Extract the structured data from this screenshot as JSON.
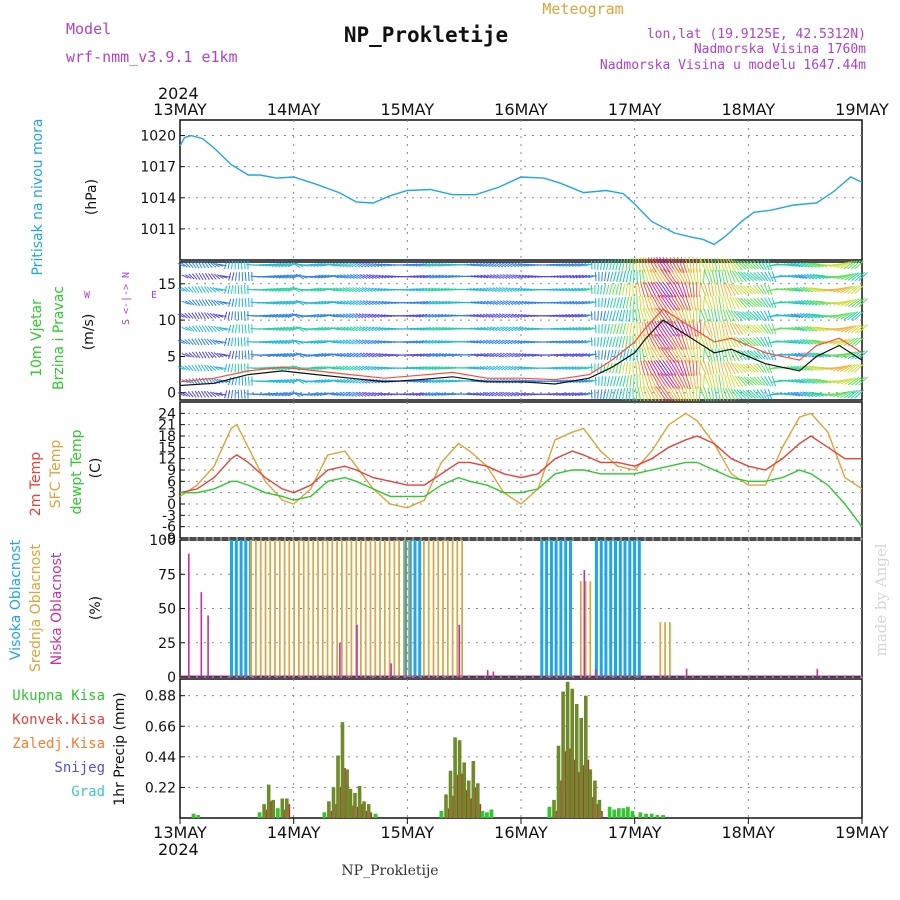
{
  "header": {
    "model_label": "Model",
    "model_name": "wrf-nmm_v3.9.1  e1km",
    "title": "NP_Prokletije",
    "subtitle": "Meteogram",
    "coords": "lon,lat (19.9125E, 42.5312N)",
    "elevation": "Nadmorska Visina 1760m",
    "model_elevation": "Nadmorska Visina u modelu 1647.44m"
  },
  "footer": {
    "station": "NP_Prokletije",
    "credit": "made by Angel"
  },
  "time_axis": {
    "year": "2024",
    "ticks": [
      "13MAY",
      "14MAY",
      "15MAY",
      "16MAY",
      "17MAY",
      "18MAY",
      "19MAY"
    ]
  },
  "wind_legend": {
    "n": "N",
    "s": "S",
    "e": "E",
    "w": "W",
    "arrows": "<-|->"
  },
  "colors": {
    "pressure": "#1fa6e6",
    "temp2m": "#e8413a",
    "sfc": "#e0a23a",
    "dewpt": "#2dc92d",
    "cloud_high": "#1fa6e6",
    "cloud_mid": "#d9a84a",
    "cloud_low": "#c42fa7",
    "precip_total": "#2dc92d",
    "precip_conv": "#e8413a",
    "precip_frz": "#ff7b2e",
    "snow": "#5050e0",
    "hail": "#3cc8c8",
    "model": "#b040d0"
  },
  "chart_data": [
    {
      "type": "line",
      "panel": "pressure",
      "ylabel": "(hPa)",
      "side_label": "Pritisak na nivou mora",
      "yticks": [
        1011,
        1014,
        1017,
        1020
      ],
      "ylim": [
        1008.0,
        1021.5
      ],
      "x_days": [
        0.0,
        0.04,
        0.1,
        0.2,
        0.3,
        0.45,
        0.6,
        0.7,
        0.85,
        1.0,
        1.2,
        1.4,
        1.55,
        1.7,
        1.85,
        2.0,
        2.2,
        2.4,
        2.6,
        2.8,
        3.0,
        3.2,
        3.35,
        3.55,
        3.75,
        3.9,
        4.0,
        4.15,
        4.35,
        4.5,
        4.6,
        4.7,
        4.8,
        4.95,
        5.05,
        5.2,
        5.4,
        5.6,
        5.75,
        5.9,
        6.0
      ],
      "series": [
        {
          "values": [
            1019.0,
            1019.8,
            1020.0,
            1019.7,
            1018.8,
            1017.2,
            1016.2,
            1016.2,
            1015.9,
            1016.0,
            1015.3,
            1014.5,
            1013.6,
            1013.5,
            1014.2,
            1014.7,
            1014.8,
            1014.3,
            1014.3,
            1015.0,
            1016.0,
            1015.9,
            1015.4,
            1014.5,
            1014.7,
            1014.4,
            1013.4,
            1011.7,
            1010.6,
            1010.2,
            1010.0,
            1009.5,
            1010.3,
            1011.8,
            1012.6,
            1012.8,
            1013.3,
            1013.5,
            1014.6,
            1016.0,
            1015.5
          ]
        }
      ]
    },
    {
      "type": "line",
      "panel": "wind",
      "ylabel": "(m/s)",
      "side_label_1": "10m Vjetar",
      "side_label_2": "Brzina i Pravac",
      "yticks": [
        0,
        5,
        10,
        15
      ],
      "ylim": [
        -1,
        18
      ],
      "x_days": [
        0.0,
        0.3,
        0.6,
        0.9,
        1.2,
        1.5,
        1.8,
        2.1,
        2.4,
        2.7,
        3.0,
        3.3,
        3.6,
        3.8,
        4.0,
        4.1,
        4.25,
        4.4,
        4.55,
        4.7,
        4.85,
        5.0,
        5.15,
        5.3,
        5.45,
        5.6,
        5.8,
        6.0
      ],
      "series": [
        {
          "name": "speed",
          "values": [
            1.0,
            1.3,
            2.5,
            3.0,
            2.5,
            2.0,
            1.5,
            1.8,
            2.2,
            1.5,
            1.5,
            1.2,
            2.0,
            3.5,
            5.5,
            7.5,
            10.0,
            8.5,
            7.0,
            5.5,
            6.0,
            5.0,
            4.0,
            3.5,
            3.0,
            5.0,
            6.5,
            4.5
          ]
        },
        {
          "name": "gust",
          "values": [
            1.5,
            2.0,
            3.0,
            3.5,
            3.0,
            2.5,
            2.0,
            2.4,
            2.8,
            2.0,
            2.0,
            1.8,
            2.5,
            4.5,
            7.0,
            9.0,
            11.5,
            10.0,
            8.5,
            7.0,
            7.5,
            6.5,
            5.5,
            5.0,
            4.5,
            6.5,
            7.5,
            5.5
          ]
        }
      ]
    },
    {
      "type": "line",
      "panel": "temperature",
      "ylabel": "(C)",
      "side_label_1": "2m Temp",
      "side_label_2": "SFC Temp",
      "side_label_3": "dewpt Temp",
      "yticks": [
        -9,
        -6,
        -3,
        0,
        3,
        6,
        9,
        12,
        15,
        18,
        21,
        24
      ],
      "ylim": [
        -9,
        27
      ],
      "x_days": [
        0.0,
        0.15,
        0.3,
        0.45,
        0.5,
        0.6,
        0.75,
        0.9,
        1.0,
        1.15,
        1.3,
        1.45,
        1.55,
        1.7,
        1.85,
        2.0,
        2.15,
        2.3,
        2.45,
        2.55,
        2.7,
        2.85,
        3.0,
        3.15,
        3.3,
        3.45,
        3.55,
        3.7,
        3.85,
        4.0,
        4.15,
        4.3,
        4.45,
        4.55,
        4.7,
        4.85,
        5.0,
        5.15,
        5.3,
        5.45,
        5.55,
        5.7,
        5.85,
        6.0
      ],
      "series": [
        {
          "name": "2m Temp",
          "values": [
            3,
            4,
            7,
            12,
            13,
            11,
            7,
            4,
            3,
            5,
            9,
            10,
            9,
            7,
            6,
            5,
            5,
            8,
            11,
            11,
            10,
            8,
            7,
            8,
            12,
            14,
            13,
            11,
            11,
            10,
            12,
            15,
            17,
            18,
            16,
            12,
            10,
            9,
            12,
            16,
            18,
            15,
            12,
            12
          ]
        },
        {
          "name": "SFC Temp",
          "values": [
            2,
            5,
            10,
            20,
            21,
            15,
            6,
            1,
            0,
            4,
            13,
            14,
            10,
            4,
            0,
            -1,
            1,
            11,
            16,
            14,
            10,
            3,
            0,
            4,
            17,
            19,
            20,
            14,
            10,
            9,
            14,
            21,
            24,
            22,
            16,
            8,
            5,
            5,
            15,
            23,
            24,
            19,
            7,
            4
          ]
        },
        {
          "name": "dewpt Temp",
          "values": [
            3,
            3,
            4,
            6,
            6,
            5,
            3,
            2,
            1,
            2,
            6,
            7,
            6,
            4,
            2,
            2,
            2,
            5,
            7,
            6,
            5,
            3,
            3,
            4,
            8,
            9,
            9,
            8,
            8,
            8,
            9,
            10,
            11,
            11,
            9,
            7,
            6,
            6,
            7,
            9,
            8,
            5,
            0,
            -6
          ]
        }
      ]
    },
    {
      "type": "bar",
      "panel": "cloud",
      "ylabel": "(%)",
      "side_label_1": "Visoka Oblacnost",
      "side_label_2": "Srednja Oblacnost",
      "side_label_3": "Niska Oblacnost",
      "yticks": [
        0,
        25,
        50,
        75,
        100
      ],
      "ylim": [
        0,
        100
      ],
      "series": [
        {
          "name": "Visoka",
          "ranges": [
            [
              0.44,
              0.63,
              100
            ],
            [
              1.97,
              2.12,
              100
            ],
            [
              3.17,
              3.43,
              100
            ],
            [
              3.65,
              4.05,
              100
            ]
          ]
        },
        {
          "name": "Srednja",
          "ranges": [
            [
              0.6,
              2.0,
              100
            ],
            [
              2.12,
              2.48,
              100
            ],
            [
              3.5,
              3.62,
              70
            ],
            [
              4.2,
              4.3,
              40
            ]
          ]
        },
        {
          "name": "Niska",
          "points": [
            [
              0.07,
              90
            ],
            [
              0.18,
              62
            ],
            [
              0.24,
              45
            ],
            [
              1.4,
              25
            ],
            [
              1.55,
              38
            ],
            [
              1.85,
              10
            ],
            [
              2.45,
              38
            ],
            [
              2.7,
              5
            ],
            [
              2.75,
              4
            ],
            [
              3.55,
              78
            ],
            [
              3.65,
              6
            ],
            [
              4.45,
              6
            ],
            [
              5.6,
              6
            ]
          ]
        }
      ]
    },
    {
      "type": "bar",
      "panel": "precip",
      "ylabel": "1hr Precip (mm)",
      "side_label_1": "Ukupna Kisa",
      "side_label_2": "Konvek.Kisa",
      "side_label_3": "Zaledj.Kisa",
      "side_label_4": "Snijeg",
      "side_label_5": "Grad",
      "yticks": [
        0.22,
        0.44,
        0.66,
        0.88
      ],
      "ylim": [
        0,
        1.0
      ],
      "x_days": [
        0.12,
        0.16,
        0.7,
        0.74,
        0.78,
        0.82,
        0.86,
        0.9,
        0.94,
        1.27,
        1.31,
        1.35,
        1.39,
        1.43,
        1.47,
        1.5,
        1.54,
        1.58,
        1.62,
        1.66,
        1.72,
        2.3,
        2.34,
        2.38,
        2.42,
        2.46,
        2.5,
        2.54,
        2.58,
        2.62,
        2.66,
        2.7,
        2.74,
        3.25,
        3.29,
        3.33,
        3.37,
        3.41,
        3.45,
        3.49,
        3.53,
        3.57,
        3.61,
        3.65,
        3.69,
        3.78,
        3.82,
        3.86,
        3.9,
        3.94,
        3.98,
        4.05,
        4.1,
        4.15,
        4.2,
        4.25
      ],
      "series": [
        {
          "name": "Ukupna Kisa",
          "values": [
            0.03,
            0.02,
            0.04,
            0.1,
            0.24,
            0.13,
            0.07,
            0.14,
            0.14,
            0.04,
            0.12,
            0.22,
            0.45,
            0.69,
            0.35,
            0.21,
            0.18,
            0.23,
            0.12,
            0.1,
            0.03,
            0.05,
            0.17,
            0.34,
            0.58,
            0.56,
            0.4,
            0.27,
            0.41,
            0.25,
            0.05,
            0.04,
            0.06,
            0.08,
            0.13,
            0.52,
            0.91,
            0.98,
            0.93,
            0.82,
            0.72,
            0.88,
            0.35,
            0.27,
            0.13,
            0.08,
            0.06,
            0.07,
            0.07,
            0.08,
            0.05,
            0.04,
            0.03,
            0.03,
            0.02,
            0.02
          ]
        },
        {
          "name": "Konvek.Kisa",
          "values": [
            0,
            0,
            0,
            0.06,
            0.12,
            0,
            0,
            0.06,
            0.1,
            0,
            0.05,
            0.1,
            0.22,
            0.36,
            0.15,
            0.09,
            0.08,
            0.1,
            0.05,
            0.04,
            0,
            0,
            0.07,
            0.16,
            0.31,
            0.32,
            0.2,
            0.14,
            0.22,
            0.1,
            0,
            0,
            0,
            0,
            0.05,
            0.27,
            0.48,
            0.5,
            0.42,
            0.33,
            0.38,
            0.42,
            0.15,
            0.1,
            0.05,
            0,
            0,
            0,
            0,
            0,
            0,
            0,
            0,
            0,
            0,
            0
          ]
        }
      ]
    }
  ]
}
